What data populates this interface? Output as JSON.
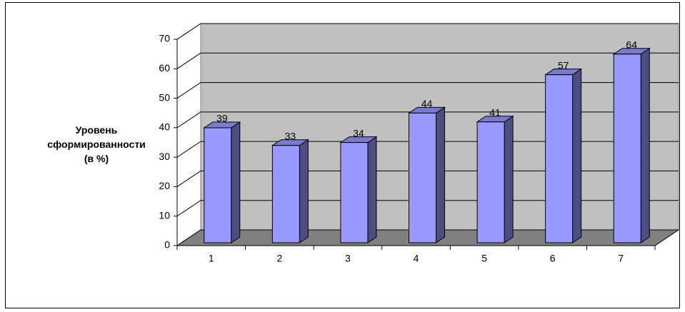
{
  "chart_data": {
    "type": "bar3d",
    "y_axis_label": "Уровень сформированности (в %)",
    "categories": [
      "1",
      "2",
      "3",
      "4",
      "5",
      "6",
      "7"
    ],
    "values": [
      39,
      33,
      34,
      44,
      41,
      57,
      64
    ],
    "color": "#9999ff",
    "ylim": [
      0,
      70
    ],
    "yticks": [
      0,
      10,
      20,
      30,
      40,
      50,
      60,
      70
    ],
    "grid": true
  }
}
